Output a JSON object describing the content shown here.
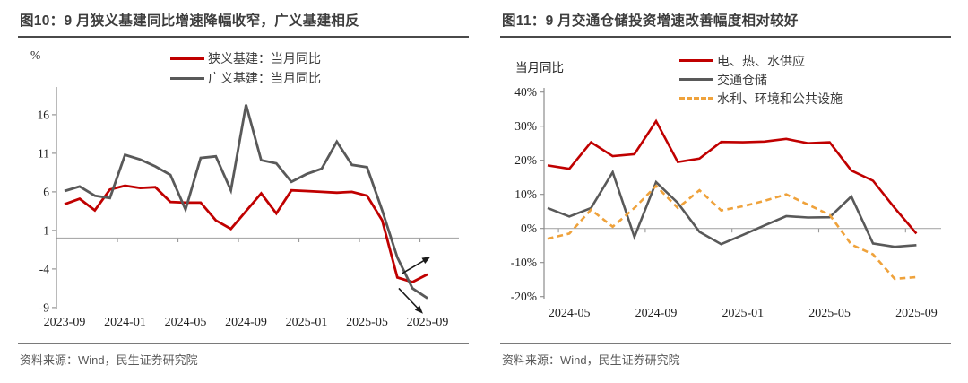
{
  "figures": [
    {
      "title": "图10：9 月狭义基建同比增速降幅收窄，广义基建相反",
      "source": "资料来源：Wind，民生证券研究院",
      "ylabel": "%",
      "legend": [
        {
          "label": "狭义基建：当月同比",
          "color": "#c00000",
          "dash": false
        },
        {
          "label": "广义基建：当月同比",
          "color": "#595959",
          "dash": false
        }
      ],
      "chart_data": {
        "type": "line",
        "x": [
          "2023-09",
          "2023-10",
          "2023-11",
          "2023-12",
          "2024-01",
          "2024-02",
          "2024-03",
          "2024-04",
          "2024-05",
          "2024-06",
          "2024-07",
          "2024-08",
          "2024-09",
          "2024-10",
          "2024-11",
          "2024-12",
          "2025-01",
          "2025-02",
          "2025-03",
          "2025-04",
          "2025-05",
          "2025-06",
          "2025-07",
          "2025-08",
          "2025-09"
        ],
        "series": [
          {
            "name": "狭义基建：当月同比",
            "color": "#c00000",
            "dash": false,
            "values": [
              4.4,
              5.1,
              3.6,
              6.3,
              6.8,
              6.5,
              6.6,
              4.7,
              4.6,
              4.6,
              2.3,
              1.2,
              3.5,
              5.8,
              3.2,
              6.2,
              6.1,
              6.0,
              5.9,
              6.0,
              5.5,
              2.3,
              -5.1,
              -5.7,
              -4.7
            ]
          },
          {
            "name": "广义基建：当月同比",
            "color": "#595959",
            "dash": false,
            "values": [
              6.1,
              6.7,
              5.5,
              5.2,
              10.8,
              10.2,
              9.3,
              8.2,
              3.7,
              10.4,
              10.6,
              6.2,
              17.3,
              10.1,
              9.7,
              7.3,
              8.3,
              9.0,
              12.5,
              9.5,
              9.2,
              3.6,
              -2.5,
              -6.5,
              -7.8
            ]
          }
        ],
        "xticks": [
          {
            "i": 0,
            "label": "2023-09"
          },
          {
            "i": 4,
            "label": "2024-01"
          },
          {
            "i": 8,
            "label": "2024-05"
          },
          {
            "i": 12,
            "label": "2024-09"
          },
          {
            "i": 16,
            "label": "2025-01"
          },
          {
            "i": 20,
            "label": "2025-05"
          },
          {
            "i": 24,
            "label": "2025-09"
          }
        ],
        "yticks": [
          {
            "v": 16,
            "label": "16"
          },
          {
            "v": 11,
            "label": "11"
          },
          {
            "v": 6,
            "label": "6"
          },
          {
            "v": 1,
            "label": "1"
          },
          {
            "v": -4,
            "label": "-4"
          },
          {
            "v": -9,
            "label": "-9"
          }
        ],
        "ylim": [
          -9,
          19.5
        ],
        "grid": false,
        "legend_position": "top",
        "annotations": [
          {
            "type": "arrow",
            "from": [
              22.3,
              -4.6
            ],
            "to": [
              24.2,
              -2.4
            ],
            "color": "#1a1a1a"
          },
          {
            "type": "arrow",
            "from": [
              22.1,
              -6.5
            ],
            "to": [
              23.7,
              -9.8
            ],
            "color": "#1a1a1a"
          }
        ]
      }
    },
    {
      "title": "图11：9 月交通仓储投资增速改善幅度相对较好",
      "source": "资料来源：Wind，民生证券研究院",
      "ylabel": "当月同比",
      "legend": [
        {
          "label": "电、热、水供应",
          "color": "#c00000",
          "dash": false
        },
        {
          "label": "交通仓储",
          "color": "#595959",
          "dash": false
        },
        {
          "label": "水利、环境和公共设施",
          "color": "#efa23b",
          "dash": true
        }
      ],
      "chart_data": {
        "type": "line",
        "x": [
          "2024-04",
          "2024-05",
          "2024-06",
          "2024-07",
          "2024-08",
          "2024-09",
          "2024-10",
          "2024-11",
          "2024-12",
          "2025-01",
          "2025-02",
          "2025-03",
          "2025-04",
          "2025-05",
          "2025-06",
          "2025-07",
          "2025-08",
          "2025-09"
        ],
        "series": [
          {
            "name": "电、热、水供应",
            "color": "#c00000",
            "dash": false,
            "values": [
              18.5,
              17.5,
              25.3,
              21.2,
              21.8,
              31.5,
              19.5,
              20.5,
              25.4,
              25.3,
              25.5,
              26.3,
              25.0,
              25.3,
              17.0,
              14.0,
              6.0,
              -1.5
            ]
          },
          {
            "name": "交通仓储",
            "color": "#595959",
            "dash": false,
            "values": [
              6.0,
              3.5,
              6.0,
              16.5,
              -2.5,
              13.6,
              7.5,
              -1.0,
              -4.6,
              -1.9,
              0.9,
              3.6,
              3.2,
              3.3,
              9.4,
              -4.4,
              -5.4,
              -4.9
            ]
          },
          {
            "name": "水利、环境和公共设施",
            "color": "#efa23b",
            "dash": true,
            "values": [
              -3.0,
              -1.5,
              5.5,
              0.5,
              6.0,
              12.5,
              6.0,
              11.2,
              5.3,
              6.5,
              8.1,
              10.0,
              7.0,
              4.0,
              -4.7,
              -7.6,
              -14.8,
              -14.3
            ]
          }
        ],
        "xticks": [
          {
            "i": 1,
            "label": "2024-05"
          },
          {
            "i": 5,
            "label": "2024-09"
          },
          {
            "i": 9,
            "label": "2025-01"
          },
          {
            "i": 13,
            "label": "2025-05"
          },
          {
            "i": 17,
            "label": "2025-09"
          }
        ],
        "yticks": [
          {
            "v": 40,
            "label": "40%"
          },
          {
            "v": 30,
            "label": "30%"
          },
          {
            "v": 20,
            "label": "20%"
          },
          {
            "v": 10,
            "label": "10%"
          },
          {
            "v": 0,
            "label": "0%"
          },
          {
            "v": -10,
            "label": "-10%"
          },
          {
            "v": -20,
            "label": "-20%"
          }
        ],
        "ylim": [
          -20,
          41
        ],
        "grid": false,
        "legend_position": "top",
        "annotations": []
      }
    }
  ]
}
